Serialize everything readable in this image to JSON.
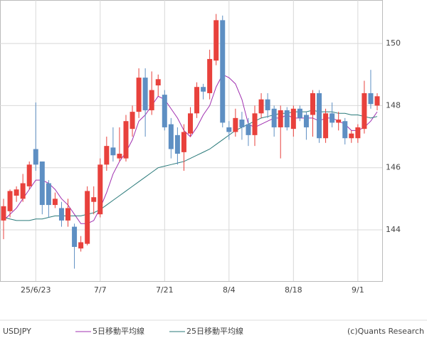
{
  "chart_data": {
    "type": "candlestick",
    "title": "USDJPY",
    "source": "(c)Quants Research",
    "categories": [
      null,
      null,
      null,
      null,
      null,
      "25/6/23",
      null,
      null,
      null,
      null,
      null,
      null,
      null,
      null,
      null,
      "7/7",
      null,
      null,
      null,
      null,
      null,
      null,
      null,
      null,
      null,
      "7/21",
      null,
      null,
      null,
      null,
      null,
      null,
      null,
      null,
      null,
      "8/4",
      null,
      null,
      null,
      null,
      null,
      null,
      null,
      null,
      null,
      "8/18",
      null,
      null,
      null,
      null,
      null,
      null,
      null,
      null,
      null,
      "9/1",
      null,
      null,
      null
    ],
    "ohlc": {
      "open": [
        144.3,
        144.6,
        145.1,
        145.0,
        145.4,
        146.6,
        146.2,
        145.5,
        144.8,
        144.7,
        144.3,
        144.1,
        143.4,
        143.55,
        144.9,
        144.5,
        146.1,
        146.65,
        146.3,
        146.3,
        147.25,
        147.8,
        148.9,
        147.85,
        148.65,
        148.35,
        147.4,
        147.05,
        146.5,
        147.1,
        147.75,
        148.6,
        148.4,
        149.45,
        150.75,
        147.3,
        147.15,
        147.55,
        147.4,
        147.05,
        147.75,
        148.2,
        147.9,
        147.3,
        147.85,
        147.25,
        147.9,
        147.7,
        147.7,
        148.4,
        146.95,
        147.75,
        147.45,
        147.5,
        146.95,
        146.95,
        147.25,
        148.4,
        148.0
      ],
      "high": [
        145.0,
        145.3,
        145.4,
        145.8,
        146.2,
        148.1,
        146.2,
        145.6,
        145.2,
        144.9,
        145.0,
        144.2,
        143.8,
        145.4,
        145.4,
        146.3,
        147.0,
        147.3,
        147.3,
        147.7,
        148.0,
        149.2,
        149.2,
        149.1,
        149.0,
        148.5,
        147.6,
        147.3,
        147.4,
        147.95,
        148.75,
        148.7,
        149.8,
        150.95,
        150.9,
        147.5,
        147.9,
        147.8,
        147.6,
        148.0,
        148.4,
        148.4,
        148.0,
        148.0,
        147.95,
        148.0,
        148.0,
        147.8,
        148.5,
        148.5,
        147.9,
        148.1,
        147.8,
        147.6,
        147.2,
        147.4,
        148.8,
        149.15,
        148.4
      ],
      "low": [
        143.7,
        144.4,
        144.9,
        144.9,
        145.3,
        145.9,
        144.5,
        144.4,
        144.7,
        144.1,
        144.1,
        142.75,
        143.3,
        143.5,
        144.5,
        144.4,
        145.9,
        146.2,
        146.2,
        146.2,
        147.0,
        147.6,
        147.0,
        147.7,
        148.3,
        147.2,
        146.3,
        146.1,
        145.9,
        147.0,
        147.6,
        148.2,
        148.2,
        149.3,
        147.3,
        146.9,
        147.0,
        146.9,
        146.7,
        146.7,
        147.6,
        147.6,
        147.0,
        146.3,
        147.2,
        147.0,
        147.5,
        146.9,
        147.0,
        146.8,
        146.8,
        147.3,
        147.2,
        146.75,
        146.8,
        146.8,
        147.1,
        147.9,
        147.85
      ],
      "close": [
        144.76,
        145.25,
        145.3,
        145.5,
        146.1,
        146.1,
        144.8,
        144.8,
        145.0,
        144.3,
        144.7,
        143.45,
        143.6,
        145.25,
        145.05,
        146.1,
        146.7,
        146.4,
        146.45,
        147.5,
        147.8,
        148.9,
        147.85,
        148.5,
        148.85,
        147.3,
        146.6,
        146.45,
        147.15,
        147.75,
        148.6,
        148.45,
        149.5,
        150.75,
        147.45,
        147.15,
        147.6,
        147.3,
        147.05,
        147.75,
        148.2,
        147.85,
        147.3,
        147.85,
        147.3,
        147.9,
        147.6,
        147.3,
        148.4,
        146.95,
        147.75,
        147.45,
        147.55,
        146.95,
        147.1,
        147.3,
        148.4,
        148.05,
        148.3
      ]
    },
    "up_color": "#e8413c",
    "down_color": "#5e8fc3",
    "series": [
      {
        "name": "5日移動平均線",
        "color": "#a030b0",
        "values": [
          144.3,
          144.5,
          144.7,
          145.0,
          145.3,
          145.6,
          145.6,
          145.5,
          145.3,
          145.0,
          144.8,
          144.5,
          144.2,
          144.2,
          144.3,
          144.7,
          145.2,
          145.8,
          146.2,
          146.5,
          146.9,
          147.5,
          147.7,
          148.0,
          148.3,
          148.2,
          147.9,
          147.6,
          147.2,
          147.0,
          147.3,
          147.7,
          148.0,
          148.6,
          149.0,
          148.9,
          148.7,
          148.2,
          147.4,
          147.3,
          147.4,
          147.5,
          147.6,
          147.6,
          147.7,
          147.6,
          147.6,
          147.6,
          147.6,
          147.5,
          147.6,
          147.6,
          147.5,
          147.4,
          147.2,
          147.2,
          147.3,
          147.5,
          147.8
        ]
      },
      {
        "name": "25日移動平均線",
        "color": "#2a7a7a",
        "values": [
          144.4,
          144.35,
          144.3,
          144.3,
          144.3,
          144.35,
          144.35,
          144.4,
          144.45,
          144.45,
          144.45,
          144.45,
          144.45,
          144.5,
          144.55,
          144.65,
          144.8,
          144.95,
          145.1,
          145.25,
          145.4,
          145.55,
          145.7,
          145.85,
          146.0,
          146.05,
          146.1,
          146.15,
          146.2,
          146.3,
          146.4,
          146.5,
          146.6,
          146.75,
          146.9,
          147.05,
          147.2,
          147.3,
          147.4,
          147.5,
          147.6,
          147.65,
          147.7,
          147.75,
          147.75,
          147.8,
          147.8,
          147.8,
          147.85,
          147.8,
          147.8,
          147.8,
          147.75,
          147.75,
          147.7,
          147.7,
          147.65,
          147.6,
          147.65
        ]
      }
    ],
    "ylim": [
      142.35,
      151.4
    ],
    "yticks": [
      144,
      146,
      148,
      150
    ],
    "grid": true
  }
}
